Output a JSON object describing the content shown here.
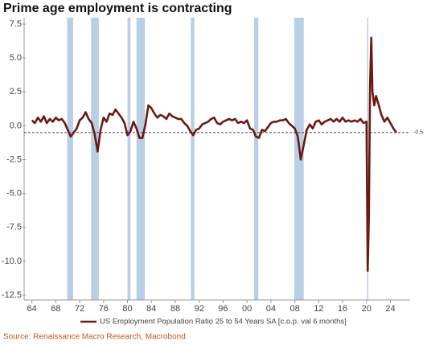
{
  "chart_data": {
    "type": "line",
    "title": "Prime age employment is contracting",
    "source": "Source: Renaissance Macro Research, Macrobond",
    "xlim": [
      1962.7,
      2027.3
    ],
    "ylim": [
      -12.5,
      7.5
    ],
    "xticks": [
      {
        "value": 1964,
        "label": "64"
      },
      {
        "value": 1968,
        "label": "68"
      },
      {
        "value": 1972,
        "label": "72"
      },
      {
        "value": 1976,
        "label": "76"
      },
      {
        "value": 1980,
        "label": "80"
      },
      {
        "value": 1984,
        "label": "84"
      },
      {
        "value": 1988,
        "label": "88"
      },
      {
        "value": 1992,
        "label": "92"
      },
      {
        "value": 1996,
        "label": "96"
      },
      {
        "value": 2000,
        "label": "00"
      },
      {
        "value": 2004,
        "label": "04"
      },
      {
        "value": 2008,
        "label": "08"
      },
      {
        "value": 2012,
        "label": "12"
      },
      {
        "value": 2016,
        "label": "16"
      },
      {
        "value": 2020,
        "label": "20"
      },
      {
        "value": 2024,
        "label": "24"
      }
    ],
    "yticks": [
      7.5,
      {
        "value": 5,
        "label": "5.0"
      },
      2.5,
      {
        "value": 0,
        "label": "0.0"
      },
      -2.5,
      {
        "value": -5,
        "label": "-5.0"
      },
      -7.5,
      {
        "value": -10,
        "label": "-10.0"
      },
      -12.5
    ],
    "reference_line": -0.5,
    "shaded_periods": [
      [
        1969.9,
        1970.9
      ],
      [
        1973.9,
        1975.2
      ],
      [
        1980.0,
        1980.5
      ],
      [
        1981.5,
        1982.9
      ],
      [
        1990.6,
        1991.2
      ],
      [
        2001.2,
        2001.9
      ],
      [
        2007.9,
        2009.5
      ],
      [
        2020.1,
        2020.3
      ]
    ],
    "shade_color": "#b9cfe6",
    "x": [
      1964,
      1964.5,
      1965,
      1965.5,
      1966,
      1966.5,
      1967,
      1967.5,
      1968,
      1968.5,
      1969,
      1969.5,
      1970,
      1970.5,
      1971,
      1971.5,
      1972,
      1972.5,
      1973,
      1973.5,
      1974,
      1974.5,
      1975,
      1975.5,
      1976,
      1976.5,
      1977,
      1977.5,
      1978,
      1978.5,
      1979,
      1979.5,
      1980,
      1980.5,
      1981,
      1981.5,
      1982,
      1982.5,
      1983,
      1983.5,
      1984,
      1984.5,
      1985,
      1985.5,
      1986,
      1986.5,
      1987,
      1987.5,
      1988,
      1988.5,
      1989,
      1989.5,
      1990,
      1990.5,
      1991,
      1991.5,
      1992,
      1992.5,
      1993,
      1993.5,
      1994,
      1994.5,
      1995,
      1995.5,
      1996,
      1996.5,
      1997,
      1997.5,
      1998,
      1998.5,
      1999,
      1999.5,
      2000,
      2000.5,
      2001,
      2001.5,
      2002,
      2002.5,
      2003,
      2003.5,
      2004,
      2004.5,
      2005,
      2005.5,
      2006,
      2006.5,
      2007,
      2007.5,
      2008,
      2008.5,
      2009,
      2009.5,
      2010,
      2010.5,
      2011,
      2011.5,
      2012,
      2012.5,
      2013,
      2013.5,
      2014,
      2014.5,
      2015,
      2015.5,
      2016,
      2016.5,
      2017,
      2017.5,
      2018,
      2018.5,
      2019,
      2019.5,
      2020,
      2020.2,
      2020.4,
      2020.6,
      2020.8,
      2021,
      2021.3,
      2021.6,
      2022,
      2022.5,
      2023,
      2023.5,
      2024,
      2024.5,
      2025
    ],
    "series": [
      {
        "name": "US Employment Population Ratio 25 to 54 Years SA [c.o.p. val 6 months]",
        "color": "#6b1a12",
        "values": [
          0.4,
          0.2,
          0.6,
          0.3,
          0.7,
          0.2,
          0.5,
          0.3,
          0.6,
          0.4,
          0.5,
          0.2,
          -0.3,
          -0.8,
          -0.5,
          -0.2,
          0.4,
          0.6,
          1.0,
          0.5,
          0.2,
          -0.6,
          -1.9,
          -0.3,
          0.6,
          0.3,
          0.9,
          0.8,
          1.2,
          0.9,
          0.6,
          0.2,
          -0.7,
          -0.4,
          0.3,
          -0.2,
          -0.9,
          -0.9,
          0.1,
          1.5,
          1.3,
          0.9,
          0.6,
          0.8,
          0.7,
          0.5,
          0.9,
          0.7,
          0.6,
          0.5,
          0.5,
          0.2,
          0.0,
          -0.4,
          -0.7,
          -0.3,
          -0.2,
          0.1,
          0.2,
          0.3,
          0.5,
          0.6,
          0.2,
          0.1,
          0.3,
          0.4,
          0.5,
          0.4,
          0.5,
          0.2,
          0.3,
          0.2,
          0.4,
          -0.2,
          -0.3,
          -0.8,
          -0.9,
          -0.3,
          -0.4,
          -0.1,
          0.2,
          0.3,
          0.3,
          0.4,
          0.4,
          0.5,
          0.2,
          0.0,
          -0.2,
          -0.8,
          -2.5,
          -1.4,
          -0.3,
          0.1,
          -0.2,
          0.3,
          0.4,
          0.1,
          0.3,
          0.4,
          0.5,
          0.3,
          0.5,
          0.3,
          0.6,
          0.3,
          0.4,
          0.3,
          0.4,
          0.3,
          0.5,
          0.2,
          0.3,
          -10.7,
          -6.7,
          3.0,
          6.5,
          2.5,
          1.5,
          2.2,
          1.6,
          0.8,
          0.3,
          0.6,
          0.2,
          -0.2,
          -0.5
        ]
      }
    ]
  }
}
